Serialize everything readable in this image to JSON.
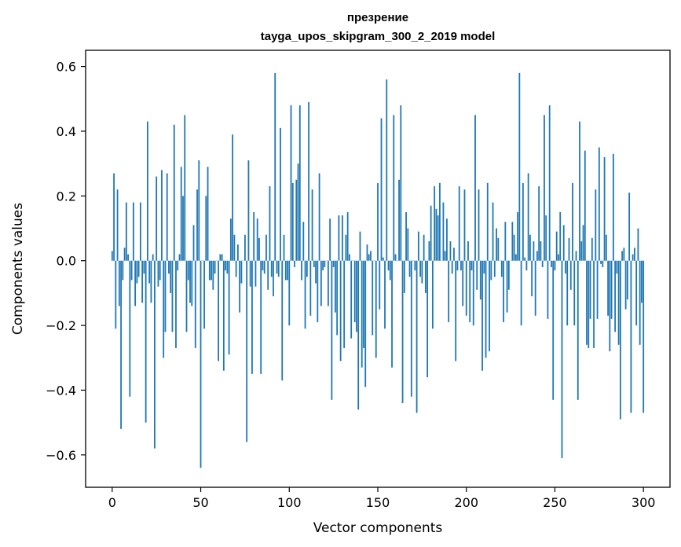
{
  "chart_data": {
    "type": "bar",
    "title_line1": "презрение",
    "title_line2": "tayga_upos_skipgram_300_2_2019 model",
    "xlabel": "Vector components",
    "ylabel": "Components values",
    "xlim": [
      -15,
      315
    ],
    "ylim": [
      -0.7,
      0.65
    ],
    "xticks": [
      0,
      50,
      100,
      150,
      200,
      250,
      300
    ],
    "xtick_labels": [
      "0",
      "50",
      "100",
      "150",
      "200",
      "250",
      "300"
    ],
    "yticks": [
      -0.6,
      -0.4,
      -0.2,
      0.0,
      0.2,
      0.4,
      0.6
    ],
    "ytick_labels": [
      "−0.6",
      "−0.4",
      "−0.2",
      "0.0",
      "0.2",
      "0.4",
      "0.6"
    ],
    "bar_color": "#1f77b4",
    "grid": false,
    "values": [
      0.03,
      0.27,
      -0.21,
      0.22,
      -0.14,
      -0.52,
      -0.06,
      0.04,
      0.18,
      0.02,
      -0.42,
      -0.06,
      0.18,
      -0.14,
      -0.07,
      -0.05,
      0.18,
      -0.13,
      -0.04,
      -0.5,
      0.43,
      -0.07,
      -0.13,
      0.02,
      -0.58,
      0.26,
      -0.08,
      -0.06,
      0.28,
      -0.3,
      -0.22,
      0.27,
      -0.04,
      -0.1,
      -0.22,
      0.42,
      -0.27,
      -0.03,
      0.02,
      0.29,
      0.2,
      0.45,
      -0.22,
      -0.06,
      -0.13,
      -0.14,
      0.11,
      -0.27,
      0.22,
      0.31,
      -0.64,
      0.0,
      -0.21,
      0.2,
      0.29,
      -0.06,
      -0.06,
      -0.09,
      -0.04,
      0.0,
      -0.31,
      0.02,
      0.02,
      -0.34,
      -0.03,
      -0.04,
      -0.29,
      0.13,
      0.39,
      0.08,
      -0.05,
      0.05,
      -0.16,
      -0.07,
      0.0,
      0.08,
      -0.56,
      0.31,
      -0.08,
      -0.35,
      0.15,
      -0.08,
      0.13,
      0.07,
      -0.35,
      -0.03,
      -0.04,
      0.08,
      -0.09,
      0.23,
      -0.05,
      -0.11,
      0.58,
      -0.04,
      -0.05,
      0.41,
      -0.37,
      0.08,
      -0.06,
      -0.06,
      -0.2,
      0.48,
      0.24,
      -0.02,
      0.25,
      0.3,
      0.48,
      -0.06,
      0.12,
      -0.21,
      -0.05,
      0.49,
      -0.17,
      0.22,
      -0.02,
      -0.07,
      -0.19,
      0.27,
      -0.14,
      -0.03,
      -0.02,
      0.0,
      -0.14,
      0.13,
      -0.43,
      -0.02,
      -0.16,
      -0.23,
      0.14,
      -0.31,
      0.14,
      -0.27,
      0.08,
      0.15,
      0.02,
      -0.24,
      0.0,
      -0.19,
      -0.22,
      -0.46,
      0.09,
      -0.33,
      -0.27,
      -0.39,
      0.05,
      0.02,
      0.03,
      -0.23,
      0.0,
      -0.3,
      0.24,
      -0.15,
      0.44,
      0.01,
      -0.21,
      0.56,
      -0.03,
      -0.06,
      -0.33,
      0.45,
      0.02,
      0.0,
      0.25,
      0.48,
      -0.44,
      -0.1,
      0.15,
      0.1,
      -0.05,
      -0.42,
      0.0,
      -0.03,
      -0.47,
      0.09,
      -0.05,
      -0.07,
      0.08,
      -0.1,
      -0.36,
      0.06,
      0.17,
      -0.21,
      0.23,
      0.16,
      0.14,
      0.24,
      0.0,
      0.18,
      0.03,
      0.13,
      -0.19,
      0.06,
      -0.04,
      0.04,
      -0.31,
      -0.03,
      0.23,
      -0.03,
      -0.14,
      0.22,
      -0.17,
      0.06,
      -0.19,
      -0.03,
      -0.2,
      0.45,
      -0.09,
      0.22,
      -0.12,
      -0.34,
      -0.04,
      -0.3,
      0.24,
      -0.28,
      -0.06,
      0.18,
      -0.05,
      0.1,
      0.07,
      0.0,
      -0.05,
      -0.19,
      0.12,
      -0.16,
      -0.09,
      0.0,
      0.12,
      0.08,
      0.02,
      0.15,
      0.58,
      -0.2,
      0.24,
      0.01,
      -0.03,
      0.27,
      0.08,
      -0.11,
      0.06,
      -0.17,
      0.03,
      0.23,
      0.06,
      -0.02,
      0.45,
      0.14,
      -0.18,
      0.48,
      -0.02,
      -0.43,
      -0.03,
      0.09,
      0.02,
      0.15,
      -0.61,
      0.11,
      -0.04,
      -0.2,
      0.07,
      -0.09,
      0.24,
      -0.2,
      0.03,
      -0.43,
      0.43,
      0.06,
      0.11,
      0.34,
      -0.26,
      -0.27,
      -0.18,
      0.07,
      -0.27,
      0.22,
      -0.18,
      0.35,
      -0.01,
      -0.02,
      0.32,
      0.08,
      -0.17,
      -0.28,
      -0.18,
      0.33,
      -0.22,
      -0.04,
      -0.26,
      -0.49,
      0.03,
      0.04,
      -0.15,
      -0.12,
      0.21,
      -0.47,
      0.02,
      0.04,
      -0.2,
      0.1,
      -0.26,
      -0.13,
      -0.47
    ]
  }
}
